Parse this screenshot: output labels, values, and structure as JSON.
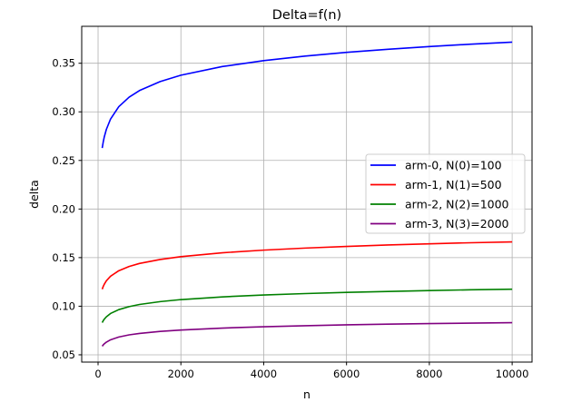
{
  "chart_data": {
    "type": "line",
    "title": "Delta=f(n)",
    "xlabel": "n",
    "ylabel": "delta",
    "xlim": [
      -395,
      10480
    ],
    "ylim": [
      0.0425,
      0.388
    ],
    "xticks": [
      0,
      2000,
      4000,
      6000,
      8000,
      10000
    ],
    "yticks": [
      0.05,
      0.1,
      0.15,
      0.2,
      0.25,
      0.3,
      0.35
    ],
    "xtick_labels": [
      "0",
      "2000",
      "4000",
      "6000",
      "8000",
      "10000"
    ],
    "ytick_labels": [
      "0.05",
      "0.10",
      "0.15",
      "0.20",
      "0.25",
      "0.30",
      "0.35"
    ],
    "grid": true,
    "legend_placement": "center-right",
    "x": [
      100,
      125,
      150,
      200,
      300,
      500,
      750,
      1000,
      1500,
      2000,
      3000,
      4000,
      5000,
      6000,
      7000,
      8000,
      9000,
      10000
    ],
    "series": [
      {
        "name": "arm-0, N(0)=100",
        "color": "#0000ff",
        "values": [
          0.2628,
          0.2691,
          0.2742,
          0.2819,
          0.2925,
          0.3053,
          0.3151,
          0.3219,
          0.3312,
          0.3377,
          0.3466,
          0.3527,
          0.3574,
          0.3612,
          0.3644,
          0.3672,
          0.3696,
          0.3717
        ]
      },
      {
        "name": "arm-1, N(1)=500",
        "color": "#ff0000",
        "values": [
          0.1175,
          0.1204,
          0.1226,
          0.1261,
          0.1308,
          0.1365,
          0.1409,
          0.144,
          0.1481,
          0.151,
          0.155,
          0.1577,
          0.1598,
          0.1615,
          0.163,
          0.1642,
          0.1653,
          0.1662
        ]
      },
      {
        "name": "arm-2, N(2)=1000",
        "color": "#008000",
        "values": [
          0.0831,
          0.0851,
          0.0867,
          0.0891,
          0.0925,
          0.0965,
          0.0996,
          0.1018,
          0.1047,
          0.1068,
          0.1096,
          0.1115,
          0.113,
          0.1142,
          0.1152,
          0.1161,
          0.1169,
          0.1175
        ]
      },
      {
        "name": "arm-3, N(3)=2000",
        "color": "#800080",
        "values": [
          0.0588,
          0.0602,
          0.0613,
          0.063,
          0.0654,
          0.0683,
          0.0705,
          0.072,
          0.0741,
          0.0755,
          0.0775,
          0.0789,
          0.0799,
          0.0808,
          0.0815,
          0.0821,
          0.0826,
          0.0831
        ]
      }
    ]
  }
}
